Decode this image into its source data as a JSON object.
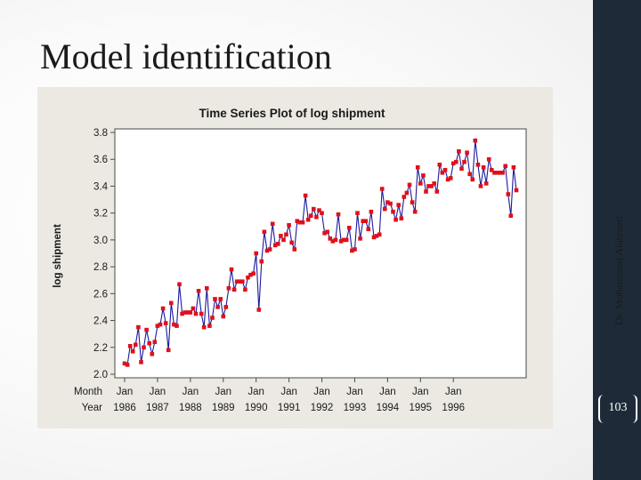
{
  "slide": {
    "title": "Model identification",
    "vertical_text": "Dr. Mohammed Alahmed",
    "page_number": "103"
  },
  "colors": {
    "sidebar": "#1e2a38",
    "chart_panel": "#ebe9e1",
    "plot_area": "#ffffff",
    "series_line": "#1a1a9e",
    "series_marker": "#e0101a"
  },
  "chart_data": {
    "type": "line",
    "title": "Time Series Plot of log shipment",
    "ylabel": "log shipment",
    "ylim": [
      2.0,
      3.8
    ],
    "y_ticks": [
      "2.0",
      "2.2",
      "2.4",
      "2.6",
      "2.8",
      "3.0",
      "3.2",
      "3.4",
      "3.6",
      "3.8"
    ],
    "x_row_labels": [
      "Month",
      "Year"
    ],
    "x_ticks": [
      {
        "month": "Jan",
        "year": "1986"
      },
      {
        "month": "Jan",
        "year": "1987"
      },
      {
        "month": "Jan",
        "year": "1988"
      },
      {
        "month": "Jan",
        "year": "1989"
      },
      {
        "month": "Jan",
        "year": "1990"
      },
      {
        "month": "Jan",
        "year": "1991"
      },
      {
        "month": "Jan",
        "year": "1992"
      },
      {
        "month": "Jan",
        "year": "1993"
      },
      {
        "month": "Jan",
        "year": "1994"
      },
      {
        "month": "Jan",
        "year": "1995"
      },
      {
        "month": "Jan",
        "year": "1996"
      }
    ],
    "grid": false,
    "series": [
      {
        "start": "1986-01",
        "frequency": "monthly",
        "values": [
          2.08,
          2.07,
          2.21,
          2.17,
          2.22,
          2.35,
          2.09,
          2.2,
          2.33,
          2.23,
          2.15,
          2.24,
          2.36,
          2.37,
          2.49,
          2.38,
          2.18,
          2.53,
          2.37,
          2.36,
          2.67,
          2.45,
          2.46,
          2.46,
          2.46,
          2.49,
          2.45,
          2.62,
          2.45,
          2.35,
          2.64,
          2.36,
          2.42,
          2.56,
          2.5,
          2.56,
          2.43,
          2.5,
          2.64,
          2.78,
          2.63,
          2.69,
          2.69,
          2.69,
          2.63,
          2.72,
          2.74,
          2.75,
          2.9,
          2.48,
          2.84,
          3.06,
          2.92,
          2.93,
          3.12,
          2.96,
          2.97,
          3.03,
          3.0,
          3.04,
          3.11,
          2.98,
          2.93,
          3.14,
          3.13,
          3.13,
          3.33,
          3.15,
          3.18,
          3.23,
          3.17,
          3.22,
          3.2,
          3.05,
          3.06,
          3.01,
          2.99,
          3.0,
          3.19,
          2.99,
          3.0,
          3.0,
          3.09,
          2.92,
          2.93,
          3.2,
          3.01,
          3.14,
          3.14,
          3.08,
          3.21,
          3.02,
          3.03,
          3.04,
          3.38,
          3.23,
          3.28,
          3.27,
          3.21,
          3.15,
          3.26,
          3.16,
          3.32,
          3.35,
          3.41,
          3.28,
          3.21,
          3.54,
          3.42,
          3.48,
          3.36,
          3.4,
          3.4,
          3.42,
          3.36,
          3.56,
          3.5,
          3.52,
          3.45,
          3.46,
          3.57,
          3.58,
          3.66,
          3.53,
          3.58,
          3.65,
          3.49,
          3.45,
          3.74,
          3.56,
          3.4,
          3.54,
          3.42,
          3.6,
          3.52,
          3.5,
          3.5,
          3.5,
          3.5,
          3.55,
          3.34,
          3.18,
          3.54,
          3.37
        ]
      }
    ]
  }
}
